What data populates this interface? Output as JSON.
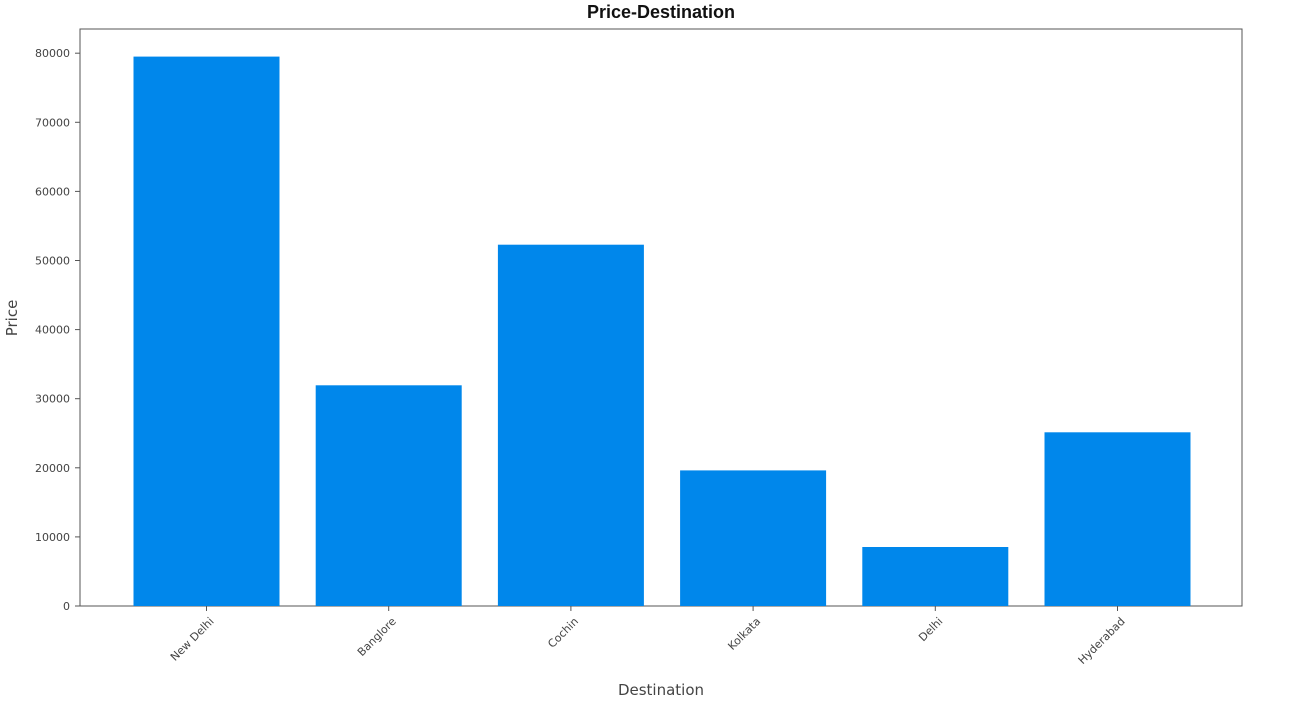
{
  "chart_data": {
    "type": "bar",
    "title": "Price-Destination",
    "xlabel": "Destination",
    "ylabel": "Price",
    "categories": [
      "New Delhi",
      "Banglore",
      "Cochin",
      "Kolkata",
      "Delhi",
      "Hyderabad"
    ],
    "values": [
      79512,
      31945,
      52285,
      19630,
      8532,
      25139
    ],
    "ylim": [
      0,
      83500
    ],
    "yticks": [
      0,
      10000,
      20000,
      30000,
      40000,
      50000,
      60000,
      70000,
      80000
    ],
    "ytick_labels": [
      "0",
      "10000",
      "20000",
      "30000",
      "40000",
      "50000",
      "60000",
      "70000",
      "80000"
    ],
    "bar_color": "#0087EB",
    "grid": false,
    "xtick_rotation_deg": -45
  }
}
